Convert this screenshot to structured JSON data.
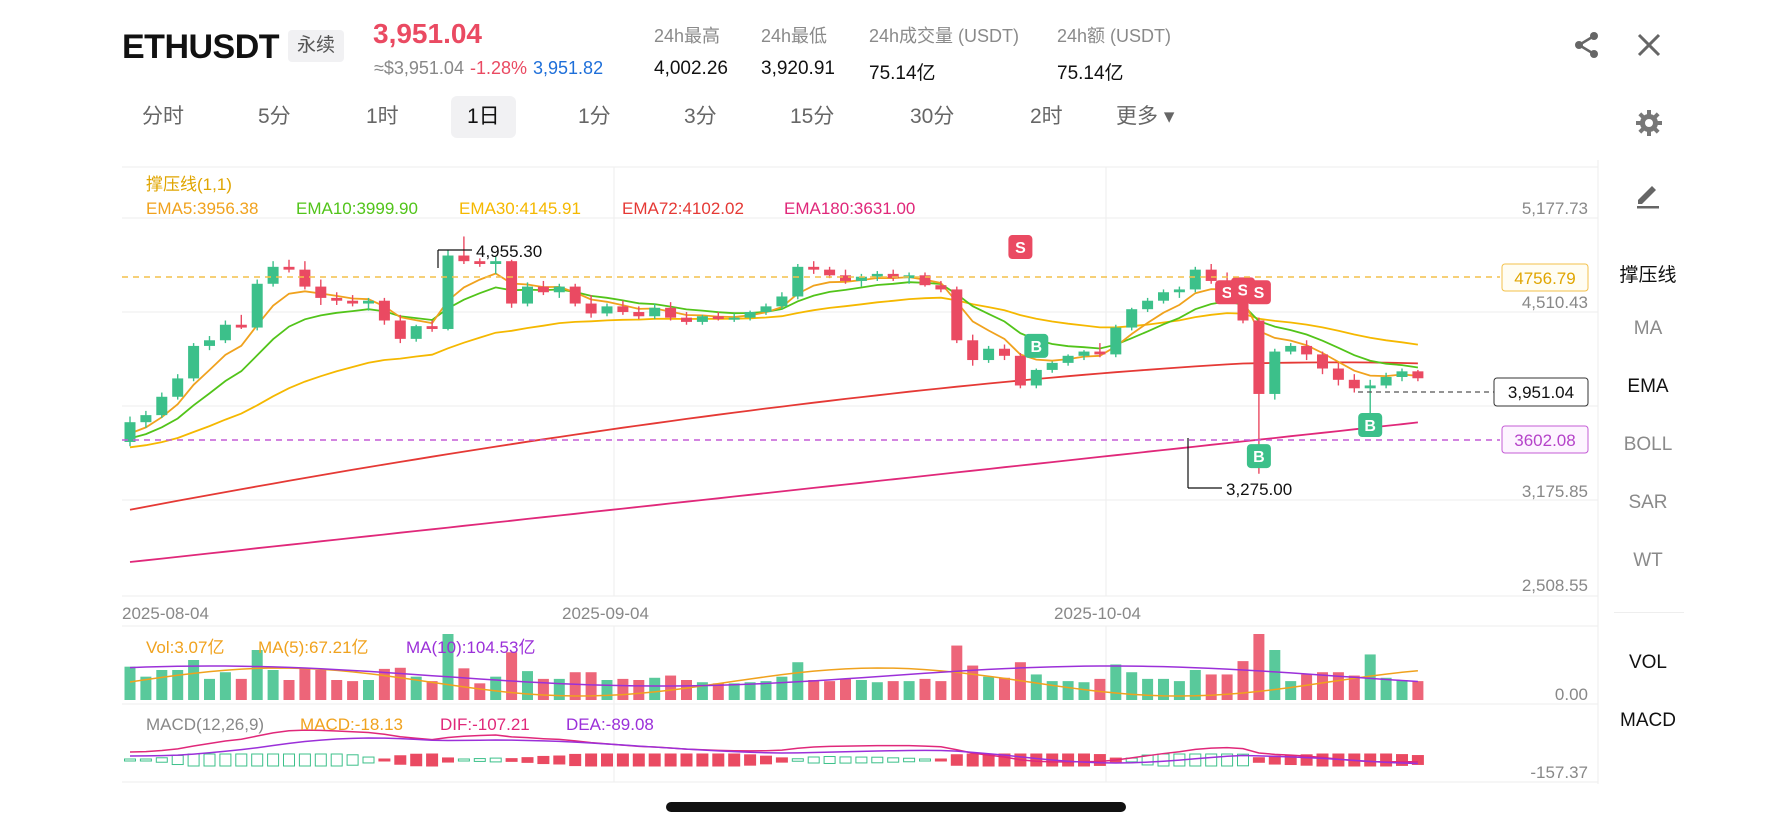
{
  "header": {
    "symbol": "ETHUSDT",
    "contract_type": "永续",
    "last_price": "3,951.04",
    "approx_usd": "≈$3,951.04",
    "change_pct": "-1.28%",
    "mark_price": "3,951.82",
    "stats": [
      {
        "label": "24h最高",
        "value": "4,002.26"
      },
      {
        "label": "24h最低",
        "value": "3,920.91"
      },
      {
        "label": "24h成交量 (USDT)",
        "value": "75.14亿"
      },
      {
        "label": "24h额 (USDT)",
        "value": "75.14亿"
      }
    ]
  },
  "intervals": {
    "tabs": [
      "分时",
      "5分",
      "1时",
      "1日",
      "1分",
      "3分",
      "15分",
      "30分",
      "2时"
    ],
    "active": "1日",
    "more_label": "更多 ▾"
  },
  "indicator_legend": {
    "title": "撑压线(1,1)",
    "items": [
      {
        "text": "EMA5:3956.38",
        "color": "#f0a21e"
      },
      {
        "text": "EMA10:3999.90",
        "color": "#52c41a"
      },
      {
        "text": "EMA30:4145.91",
        "color": "#f5b800"
      },
      {
        "text": "EMA72:4102.02",
        "color": "#e53935"
      },
      {
        "text": "EMA180:3631.00",
        "color": "#e0287a"
      }
    ]
  },
  "price_axis": {
    "ticks": [
      "5,177.73",
      "4,510.43",
      "3,175.85",
      "2,508.55"
    ],
    "resistance": "4756.79",
    "support": "3602.08",
    "current": "3,951.04"
  },
  "annotations": {
    "high": "4,955.30",
    "low": "3,275.00",
    "sell_marker": "S",
    "buy_marker": "B"
  },
  "x_axis": {
    "dates": [
      "2025-08-04",
      "2025-09-04",
      "2025-10-04"
    ]
  },
  "volume_legend": {
    "vol": "Vol:3.07亿",
    "ma5": "MA(5):67.21亿",
    "ma10": "MA(10):104.53亿",
    "axis_zero": "0.00"
  },
  "macd_legend": {
    "title": "MACD(12,26,9)",
    "macd": "MACD:-18.13",
    "dif": "DIF:-107.21",
    "dea": "DEA:-89.08",
    "axis_min": "-157.37"
  },
  "side_panel": {
    "main": [
      "撑压线",
      "MA",
      "EMA",
      "BOLL",
      "SAR",
      "WT"
    ],
    "main_active": [
      "撑压线",
      "EMA"
    ],
    "sub": [
      "VOL",
      "MACD"
    ]
  },
  "colors": {
    "up": "#3cc08a",
    "down": "#ea4a62",
    "resistance": "#f3c14b",
    "support": "#c45cd6",
    "macd_dif": "#e0287a",
    "macd_dea": "#9b30d9"
  },
  "chart_data": {
    "type": "candlestick",
    "interval": "1d",
    "x_dates": [
      "2025-08-04",
      "2025-09-04",
      "2025-10-04"
    ],
    "y_ticks": [
      5177.73,
      4510.43,
      3175.85,
      2508.55
    ],
    "high_label": 4955.3,
    "low_label": 3275.0,
    "last": 3951.04,
    "resistance": 4756.79,
    "support": 3602.08,
    "candles_ohlc": [
      [
        3500,
        3680,
        3470,
        3640
      ],
      [
        3640,
        3720,
        3600,
        3690
      ],
      [
        3690,
        3850,
        3670,
        3820
      ],
      [
        3820,
        3980,
        3800,
        3950
      ],
      [
        3950,
        4200,
        3930,
        4180
      ],
      [
        4180,
        4250,
        4150,
        4220
      ],
      [
        4220,
        4360,
        4200,
        4330
      ],
      [
        4330,
        4400,
        4300,
        4310
      ],
      [
        4310,
        4650,
        4290,
        4620
      ],
      [
        4620,
        4780,
        4600,
        4740
      ],
      [
        4740,
        4790,
        4700,
        4720
      ],
      [
        4720,
        4780,
        4580,
        4600
      ],
      [
        4600,
        4650,
        4470,
        4520
      ],
      [
        4520,
        4560,
        4470,
        4500
      ],
      [
        4500,
        4540,
        4460,
        4480
      ],
      [
        4480,
        4520,
        4430,
        4500
      ],
      [
        4500,
        4520,
        4330,
        4360
      ],
      [
        4360,
        4400,
        4200,
        4230
      ],
      [
        4230,
        4330,
        4210,
        4320
      ],
      [
        4320,
        4360,
        4280,
        4300
      ],
      [
        4300,
        4860,
        4290,
        4820
      ],
      [
        4820,
        4955,
        4760,
        4780
      ],
      [
        4780,
        4800,
        4740,
        4760
      ],
      [
        4760,
        4810,
        4690,
        4780
      ],
      [
        4780,
        4790,
        4450,
        4480
      ],
      [
        4480,
        4630,
        4460,
        4600
      ],
      [
        4600,
        4640,
        4540,
        4560
      ],
      [
        4560,
        4620,
        4520,
        4600
      ],
      [
        4600,
        4620,
        4460,
        4480
      ],
      [
        4480,
        4540,
        4380,
        4410
      ],
      [
        4410,
        4480,
        4390,
        4460
      ],
      [
        4460,
        4500,
        4400,
        4420
      ],
      [
        4420,
        4460,
        4370,
        4390
      ],
      [
        4390,
        4480,
        4370,
        4450
      ],
      [
        4450,
        4490,
        4360,
        4380
      ],
      [
        4380,
        4420,
        4330,
        4350
      ],
      [
        4350,
        4400,
        4330,
        4390
      ],
      [
        4390,
        4420,
        4360,
        4370
      ],
      [
        4370,
        4410,
        4350,
        4380
      ],
      [
        4380,
        4430,
        4360,
        4420
      ],
      [
        4420,
        4480,
        4400,
        4460
      ],
      [
        4460,
        4560,
        4440,
        4530
      ],
      [
        4530,
        4760,
        4510,
        4740
      ],
      [
        4740,
        4780,
        4690,
        4720
      ],
      [
        4720,
        4740,
        4660,
        4680
      ],
      [
        4680,
        4720,
        4620,
        4640
      ],
      [
        4640,
        4690,
        4600,
        4670
      ],
      [
        4670,
        4710,
        4640,
        4690
      ],
      [
        4690,
        4720,
        4640,
        4660
      ],
      [
        4660,
        4700,
        4620,
        4680
      ],
      [
        4680,
        4700,
        4600,
        4610
      ],
      [
        4610,
        4640,
        4560,
        4580
      ],
      [
        4580,
        4600,
        4200,
        4220
      ],
      [
        4220,
        4260,
        4040,
        4080
      ],
      [
        4080,
        4180,
        4060,
        4160
      ],
      [
        4160,
        4190,
        4080,
        4110
      ],
      [
        4110,
        4130,
        3880,
        3900
      ],
      [
        3900,
        4020,
        3880,
        4010
      ],
      [
        4010,
        4070,
        3990,
        4060
      ],
      [
        4060,
        4120,
        4040,
        4110
      ],
      [
        4110,
        4150,
        4080,
        4140
      ],
      [
        4140,
        4200,
        4100,
        4120
      ],
      [
        4120,
        4330,
        4100,
        4310
      ],
      [
        4310,
        4450,
        4290,
        4440
      ],
      [
        4440,
        4520,
        4420,
        4500
      ],
      [
        4500,
        4580,
        4480,
        4560
      ],
      [
        4560,
        4600,
        4520,
        4580
      ],
      [
        4580,
        4740,
        4560,
        4720
      ],
      [
        4720,
        4760,
        4620,
        4640
      ],
      [
        4640,
        4700,
        4560,
        4580
      ],
      [
        4580,
        4600,
        4340,
        4360
      ],
      [
        4360,
        4380,
        3275,
        3840
      ],
      [
        3840,
        4160,
        3800,
        4140
      ],
      [
        4140,
        4200,
        4120,
        4180
      ],
      [
        4180,
        4220,
        4080,
        4120
      ],
      [
        4120,
        4140,
        3980,
        4020
      ],
      [
        4020,
        4060,
        3900,
        3940
      ],
      [
        3940,
        3980,
        3850,
        3880
      ],
      [
        3880,
        3940,
        3620,
        3900
      ],
      [
        3900,
        3990,
        3880,
        3960
      ],
      [
        3960,
        4020,
        3930,
        4000
      ],
      [
        4000,
        4010,
        3930,
        3951
      ]
    ],
    "volume_series": [
      {
        "name": "Vol",
        "last": "3.07亿"
      },
      {
        "name": "MA(5)",
        "last": "67.21亿"
      },
      {
        "name": "MA(10)",
        "last": "104.53亿"
      }
    ],
    "macd_series": {
      "macd": -18.13,
      "dif": -107.21,
      "dea": -89.08
    }
  }
}
